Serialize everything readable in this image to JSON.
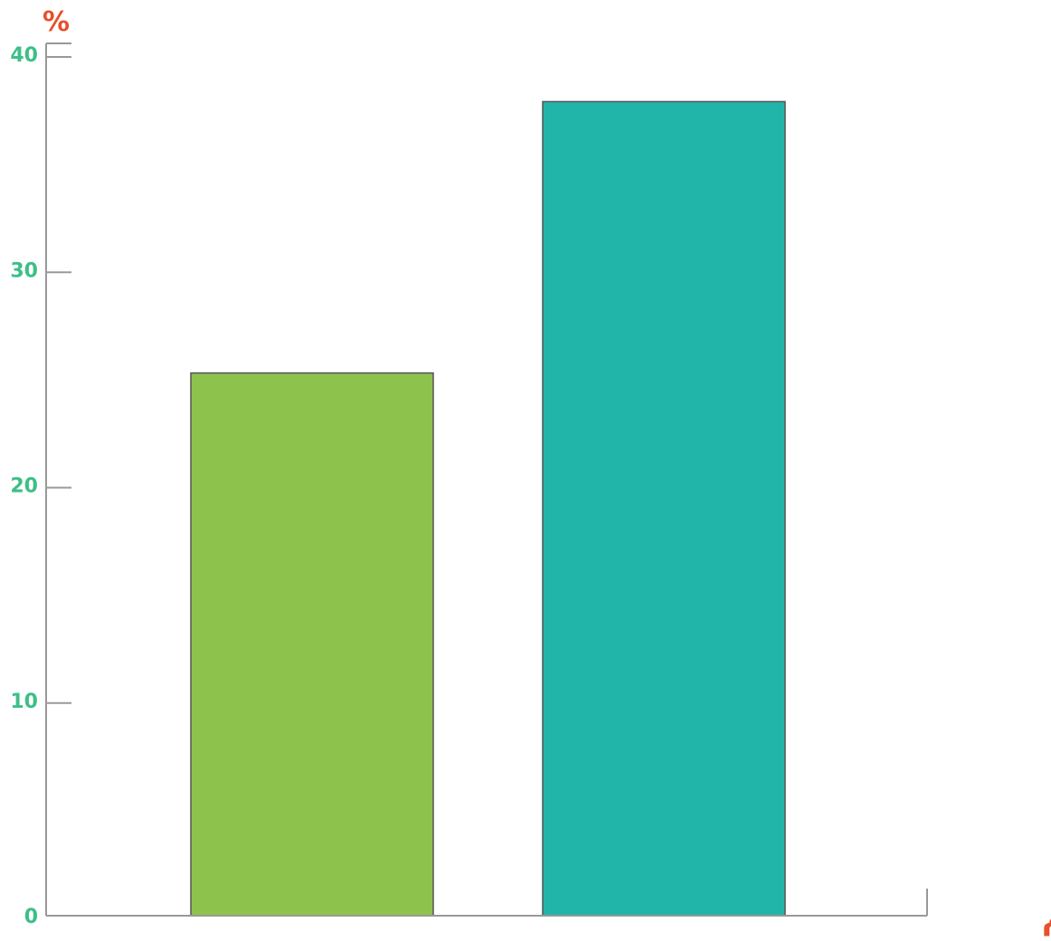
{
  "chart_data": {
    "type": "bar",
    "title": "",
    "ylabel": "%",
    "xlabel": "الأعوام",
    "ylim": [
      0,
      40
    ],
    "yticks": [
      "0",
      "10",
      "20",
      "30",
      "40"
    ],
    "ytick_values": [
      0,
      10,
      20,
      30,
      40
    ],
    "categories": [
      "",
      ""
    ],
    "values": [
      25.2,
      37.8
    ],
    "bar_colors": [
      "#8dc34d",
      "#21b5aa"
    ],
    "axis_color": "#999999",
    "tick_label_color": "#3dbf86",
    "axis_title_color": "#e8502a",
    "grid": false,
    "legend": "none"
  }
}
